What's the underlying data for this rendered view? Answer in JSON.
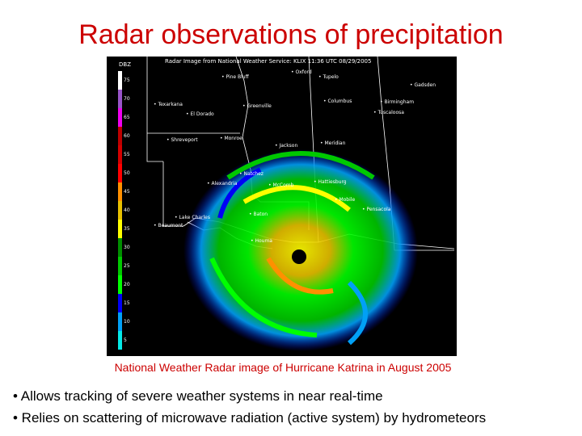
{
  "slide": {
    "title": "Radar observations of precipitation",
    "caption": "National Weather Radar image of Hurricane Katrina in August 2005",
    "bullets": [
      "• Allows tracking of severe weather systems in near real-time",
      "• Relies on scattering of microwave radiation (active system) by hydrometeors"
    ]
  },
  "radar_image": {
    "header": "Radar Image from National Weather Service: KLIX 11:36 UTC 08/29/2005",
    "scale_label": "DBZ",
    "scale_ticks": [
      "75",
      "70",
      "65",
      "60",
      "55",
      "50",
      "45",
      "40",
      "35",
      "30",
      "25",
      "20",
      "15",
      "10",
      "5"
    ],
    "scale_colors": [
      "#ffffff",
      "#9955c9",
      "#f000f0",
      "#bd0000",
      "#d40000",
      "#ff0000",
      "#ff9000",
      "#e7c000",
      "#ffff00",
      "#008e00",
      "#00c800",
      "#00ff00",
      "#0000f6",
      "#01a0f6",
      "#04e9e7"
    ],
    "cities": [
      "Pine Bluff",
      "Oxford",
      "Tupelo",
      "Gadsden",
      "Texarkana",
      "Greenville",
      "Columbus",
      "Birmingham",
      "El Dorado",
      "Tuscaloosa",
      "Shreveport",
      "Monroe",
      "Jackson",
      "Meridian",
      "Natchez",
      "Alexandria",
      "McComb",
      "Hattiesburg",
      "Mobile",
      "Pensacola",
      "Lake Charles",
      "Beaumont",
      "Baton",
      "Houma"
    ]
  }
}
